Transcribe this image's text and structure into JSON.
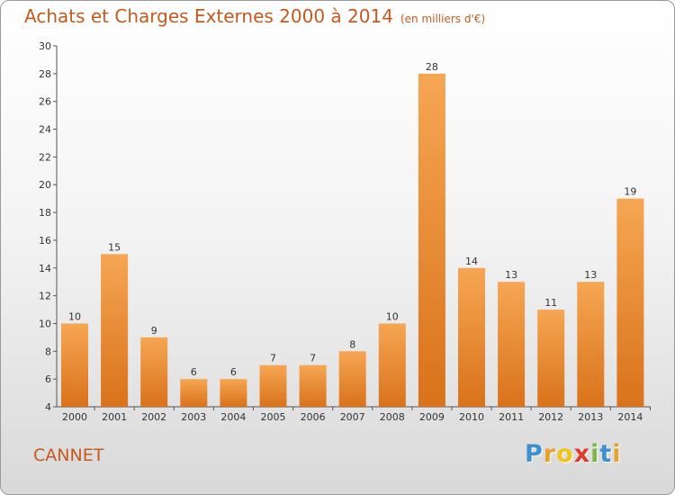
{
  "title": "Achats et Charges Externes 2000 à 2014",
  "title_unit": "(en milliers d'€)",
  "commune": "CANNET",
  "logo": {
    "letters": [
      "P",
      "r",
      "o",
      "x",
      "i",
      "t",
      "i"
    ],
    "colors": [
      "#3c8fd0",
      "#e8a12a",
      "#f0c419",
      "#e03a2e",
      "#7ab648",
      "#3c8fd0",
      "#e8a12a"
    ]
  },
  "chart_data": {
    "type": "bar",
    "title": "Achats et Charges Externes 2000 à 2014",
    "categories": [
      "2000",
      "2001",
      "2002",
      "2003",
      "2004",
      "2005",
      "2006",
      "2007",
      "2008",
      "2009",
      "2010",
      "2011",
      "2012",
      "2013",
      "2014"
    ],
    "values": [
      10,
      15,
      9,
      6,
      6,
      7,
      7,
      8,
      10,
      28,
      14,
      13,
      11,
      13,
      19
    ],
    "ylim": [
      4,
      30
    ],
    "yticks": [
      4,
      6,
      8,
      10,
      12,
      14,
      16,
      18,
      20,
      22,
      24,
      26,
      28,
      30
    ],
    "bar_color": "#e67e22",
    "grid": false,
    "data_labels": true
  }
}
